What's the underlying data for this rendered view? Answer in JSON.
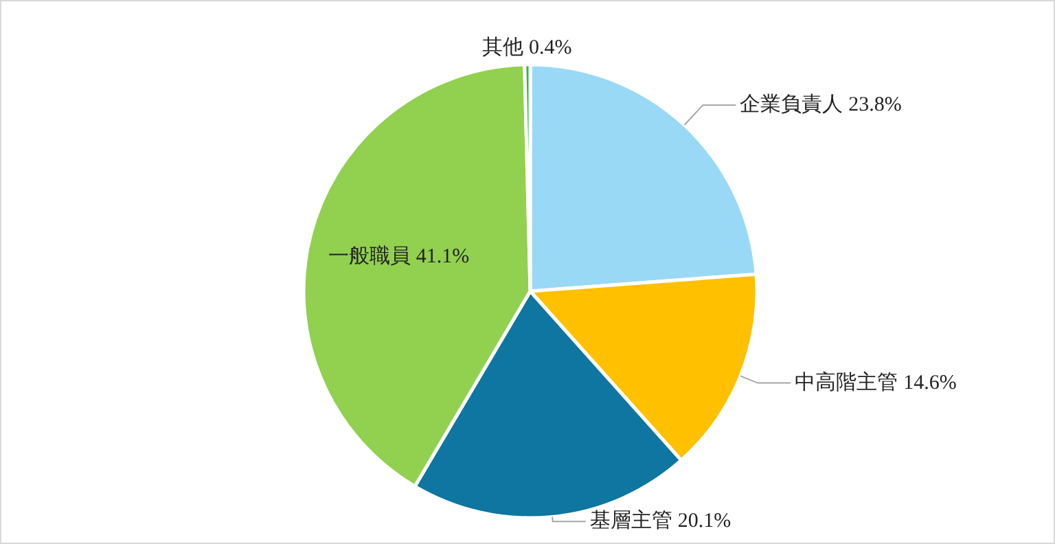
{
  "chart_data": {
    "type": "pie",
    "categories": [
      "企業負責人",
      "中高階主管",
      "基層主管",
      "一般職員",
      "其他"
    ],
    "values": [
      23.8,
      14.6,
      20.1,
      41.1,
      0.4
    ],
    "colors": [
      "#99d9f6",
      "#ffc000",
      "#0e76a0",
      "#92d050",
      "#3cb44a"
    ],
    "value_labels": [
      "23.8%",
      "14.6%",
      "20.1%",
      "41.1%",
      "0.4%"
    ]
  }
}
